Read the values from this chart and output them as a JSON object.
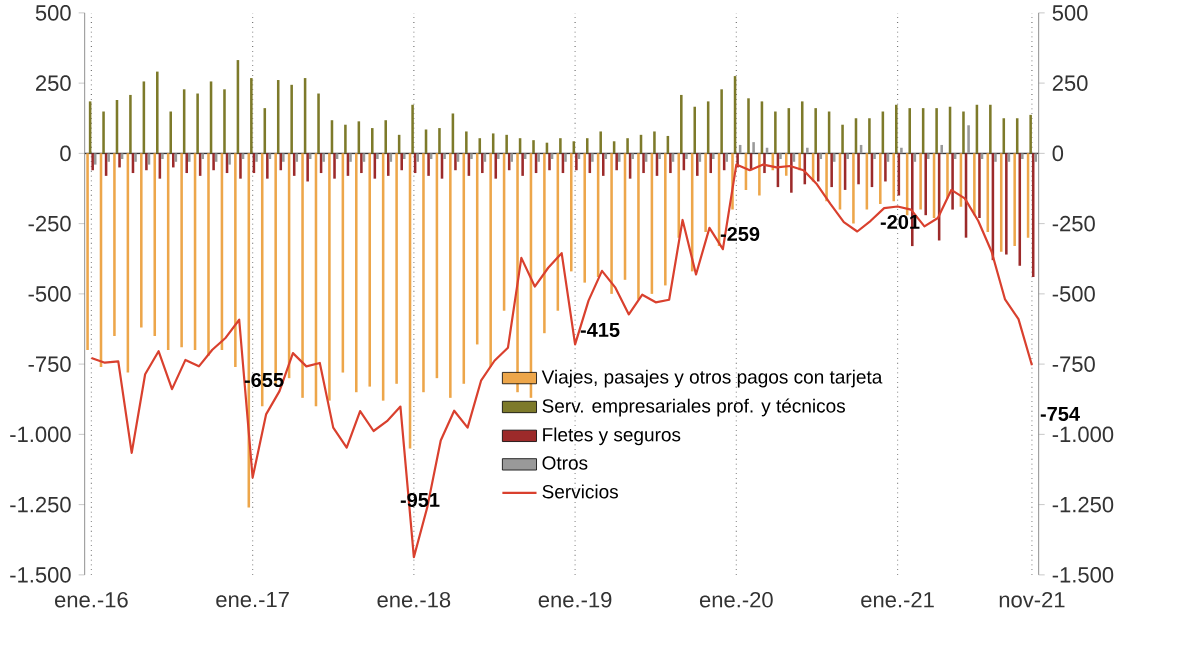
{
  "chart_data": {
    "type": "bar",
    "categories": [
      "ene.-16",
      null,
      null,
      null,
      null,
      null,
      null,
      null,
      null,
      null,
      null,
      null,
      "ene.-17",
      null,
      null,
      null,
      null,
      null,
      null,
      null,
      null,
      null,
      null,
      null,
      "ene.-18",
      null,
      null,
      null,
      null,
      null,
      null,
      null,
      null,
      null,
      null,
      null,
      "ene.-19",
      null,
      null,
      null,
      null,
      null,
      null,
      null,
      null,
      null,
      null,
      null,
      "ene.-20",
      null,
      null,
      null,
      null,
      null,
      null,
      null,
      null,
      null,
      null,
      null,
      "ene.-21",
      null,
      null,
      null,
      null,
      null,
      null,
      null,
      null,
      null,
      "nov-21"
    ],
    "series": [
      {
        "name": "Viajes, pasajes y otros pagos con tarjeta",
        "color": "#eda64a",
        "values": [
          -700,
          -760,
          -650,
          -780,
          -620,
          -650,
          -700,
          -690,
          -700,
          -720,
          -700,
          -760,
          -1260,
          -900,
          -820,
          -800,
          -870,
          -900,
          -880,
          -780,
          -850,
          -830,
          -880,
          -820,
          -1050,
          -850,
          -800,
          -870,
          -820,
          -680,
          -760,
          -560,
          -850,
          -870,
          -640,
          -560,
          -420,
          -460,
          -440,
          -500,
          -450,
          -520,
          -500,
          -470,
          -300,
          -420,
          -280,
          -330,
          -200,
          -130,
          -150,
          -60,
          -80,
          -60,
          -100,
          -170,
          -200,
          -250,
          -200,
          -180,
          -170,
          -220,
          -200,
          -230,
          -160,
          -190,
          -220,
          -280,
          -350,
          -330,
          -300
        ]
      },
      {
        "name": "Serv. empresariales prof. y técnicos",
        "color": "#7d7a2a",
        "values": [
          185,
          149,
          190,
          208,
          256,
          291,
          149,
          228,
          213,
          256,
          228,
          332,
          268,
          161,
          261,
          244,
          268,
          213,
          118,
          102,
          114,
          90,
          118,
          66,
          173,
          85,
          90,
          142,
          78,
          54,
          71,
          66,
          54,
          47,
          38,
          54,
          43,
          54,
          78,
          43,
          54,
          66,
          78,
          62,
          208,
          166,
          185,
          228,
          275,
          196,
          185,
          149,
          161,
          185,
          161,
          149,
          102,
          125,
          125,
          149,
          173,
          161,
          161,
          161,
          166,
          149,
          173,
          173,
          125,
          125,
          137
        ]
      },
      {
        "name": "Fletes y seguros",
        "color": "#9c2a2a",
        "values": [
          -60,
          -80,
          -50,
          -70,
          -60,
          -90,
          -50,
          -70,
          -80,
          -60,
          -70,
          -90,
          -70,
          -90,
          -60,
          -80,
          -100,
          -70,
          -90,
          -80,
          -70,
          -90,
          -80,
          -60,
          -70,
          -80,
          -90,
          -60,
          -80,
          -70,
          -90,
          -60,
          -80,
          -70,
          -60,
          -70,
          -60,
          -70,
          -80,
          -60,
          -90,
          -70,
          -80,
          -70,
          -60,
          -80,
          -70,
          -60,
          -50,
          -60,
          -70,
          -120,
          -140,
          -110,
          -100,
          -120,
          -130,
          -110,
          -120,
          -100,
          -150,
          -330,
          -220,
          -310,
          -200,
          -300,
          -230,
          -380,
          -360,
          -400,
          -440
        ]
      },
      {
        "name": "Otros",
        "color": "#999999",
        "values": [
          -40,
          -30,
          -20,
          -30,
          -40,
          -20,
          -30,
          -30,
          -20,
          -30,
          -40,
          -20,
          -30,
          -20,
          -30,
          -30,
          -20,
          -30,
          -20,
          -30,
          -30,
          -20,
          -30,
          -20,
          -30,
          -20,
          -20,
          -30,
          -20,
          -30,
          -20,
          -30,
          -20,
          -30,
          -20,
          -30,
          -20,
          -30,
          -20,
          -30,
          -20,
          -30,
          -20,
          -30,
          -20,
          -30,
          -20,
          -30,
          30,
          40,
          20,
          -20,
          -30,
          20,
          -20,
          -30,
          -20,
          30,
          -20,
          -30,
          20,
          -30,
          -20,
          30,
          -20,
          100,
          -20,
          -30,
          -30,
          -20,
          -30
        ]
      },
      {
        "name": "Servicios",
        "type": "line",
        "color": "#d9402e",
        "values": [
          -728,
          -745,
          -740,
          -1066,
          -786,
          -704,
          -839,
          -735,
          -758,
          -699,
          -656,
          -592,
          -1154,
          -929,
          -846,
          -711,
          -758,
          -746,
          -976,
          -1047,
          -917,
          -988,
          -953,
          -901,
          -1437,
          -1259,
          -1022,
          -916,
          -976,
          -809,
          -738,
          -692,
          -372,
          -474,
          -407,
          -355,
          -680,
          -524,
          -418,
          -478,
          -573,
          -503,
          -530,
          -521,
          -237,
          -431,
          -265,
          -341,
          -40,
          -60,
          -40,
          -50,
          -45,
          -60,
          -110,
          -180,
          -245,
          -278,
          -240,
          -195,
          -189,
          -200,
          -260,
          -230,
          -130,
          -160,
          -240,
          -350,
          -520,
          -590,
          -754
        ]
      }
    ],
    "ylim": [
      -1500,
      500
    ],
    "yticks": [
      500,
      250,
      0,
      -250,
      -500,
      -750,
      {
        "value": -1000,
        "label": "-1.000"
      },
      {
        "value": -1250,
        "label": "-1.250"
      },
      {
        "value": -1500,
        "label": "-1.500"
      }
    ],
    "y2lim": [
      -1500,
      500
    ],
    "y2ticks": [
      500,
      250,
      0,
      -250,
      -500,
      -750,
      {
        "value": -1000,
        "label": "-1.000"
      },
      {
        "value": -1250,
        "label": "-1.250"
      },
      {
        "value": -1500,
        "label": "-1.500"
      }
    ],
    "grid": "x",
    "legend": "bottom",
    "ref_lines": [
      {
        "axis": "y",
        "value": 0,
        "color": "#333333"
      }
    ],
    "annotations": [
      "-655",
      "-951",
      "-415",
      "-259",
      "-201",
      "-754"
    ]
  }
}
